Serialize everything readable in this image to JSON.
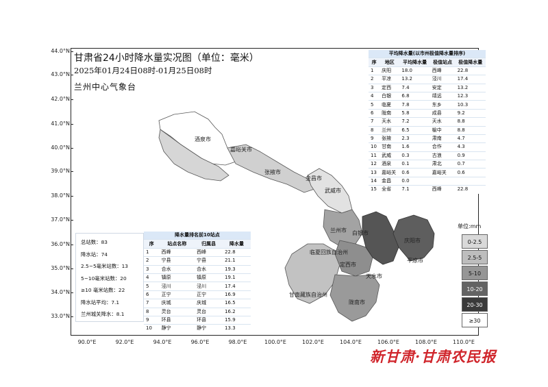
{
  "title": "甘肃省24小时降水量实况图（单位：毫米）",
  "subtitle": "2025年01月24日08时-01月25日08时",
  "agency": "兰州中心气象台",
  "axes": {
    "lat_labels": [
      "44.0°N",
      "43.0°N",
      "42.0°N",
      "41.0°N",
      "40.0°N",
      "39.0°N",
      "38.0°N",
      "37.0°N",
      "36.0°N",
      "35.0°N",
      "34.0°N",
      "33.0°N"
    ],
    "lon_labels": [
      "90.0°E",
      "92.0°E",
      "94.0°E",
      "96.0°E",
      "98.0°E",
      "100.0°E",
      "102.0°E",
      "104.0°E",
      "106.0°E",
      "108.0°E",
      "110.0°E"
    ]
  },
  "cities": [
    "酒泉市",
    "嘉峪关市",
    "张掖市",
    "金昌市",
    "武威市",
    "白银市",
    "兰州市",
    "临夏回族自治州",
    "定西市",
    "庆阳市",
    "平凉市",
    "天水市",
    "甘南藏族自治州",
    "陇南市"
  ],
  "avg_table": {
    "caption": "平均降水量(以市州极值降水量排序)",
    "headers": [
      "序",
      "地区",
      "平均降水量",
      "极值站点",
      "极值降水量"
    ],
    "rows": [
      [
        "1",
        "庆阳",
        "18.0",
        "西峰",
        "22.8"
      ],
      [
        "2",
        "平凉",
        "13.2",
        "泾川",
        "17.4"
      ],
      [
        "3",
        "定西",
        "7.4",
        "安定",
        "13.2"
      ],
      [
        "4",
        "白银",
        "6.8",
        "靖远",
        "12.3"
      ],
      [
        "5",
        "临夏",
        "7.8",
        "东乡",
        "10.3"
      ],
      [
        "6",
        "陇南",
        "5.8",
        "成县",
        "9.2"
      ],
      [
        "7",
        "天水",
        "7.2",
        "天水",
        "8.8"
      ],
      [
        "8",
        "兰州",
        "6.5",
        "榆中",
        "8.8"
      ],
      [
        "9",
        "张掖",
        "2.3",
        "肃南",
        "4.7"
      ],
      [
        "10",
        "甘南",
        "1.6",
        "合作",
        "4.3"
      ],
      [
        "11",
        "武威",
        "0.3",
        "古浪",
        "0.9"
      ],
      [
        "12",
        "酒泉",
        "0.1",
        "肃北",
        "0.7"
      ],
      [
        "13",
        "嘉峪关",
        "0.6",
        "嘉峪关",
        "0.6"
      ],
      [
        "14",
        "金昌",
        "0.0",
        "",
        ""
      ],
      [
        "15",
        "全省",
        "7.1",
        "西峰",
        "22.8"
      ]
    ]
  },
  "top10_table": {
    "caption": "降水量排名前10站点",
    "headers": [
      "序",
      "站点名称",
      "归属县",
      "降水量"
    ],
    "rows": [
      [
        "1",
        "西峰",
        "西峰",
        "22.8"
      ],
      [
        "2",
        "宁县",
        "宁县",
        "21.1"
      ],
      [
        "3",
        "合水",
        "合水",
        "19.3"
      ],
      [
        "4",
        "镇原",
        "镇原",
        "19.1"
      ],
      [
        "5",
        "泾川",
        "泾川",
        "17.4"
      ],
      [
        "6",
        "正宁",
        "正宁",
        "16.9"
      ],
      [
        "7",
        "庆城",
        "庆城",
        "16.5"
      ],
      [
        "8",
        "灵台",
        "灵台",
        "16.2"
      ],
      [
        "9",
        "环县",
        "环县",
        "15.9"
      ],
      [
        "10",
        "静宁",
        "静宁",
        "13.3"
      ]
    ]
  },
  "stats": [
    "总站数：83",
    "降水站：74",
    "2.5~5毫米站数：13",
    "5~10毫米站数：20",
    "≥10 毫米站数：22",
    "降水站平均：7.1",
    "兰州城关降水：8.1"
  ],
  "legend": {
    "unit": "单位:mm",
    "items": [
      {
        "label": "0-2.5",
        "color": "#d9d9d9"
      },
      {
        "label": "2.5-5",
        "color": "#bdbdbd"
      },
      {
        "label": "5-10",
        "color": "#969696"
      },
      {
        "label": "10-20",
        "color": "#636363"
      },
      {
        "label": "20-30",
        "color": "#3a3a3a"
      },
      {
        "label": "≥30",
        "color": "#ffffff"
      }
    ]
  },
  "footer_logo": "新甘肃·甘肃农民报"
}
